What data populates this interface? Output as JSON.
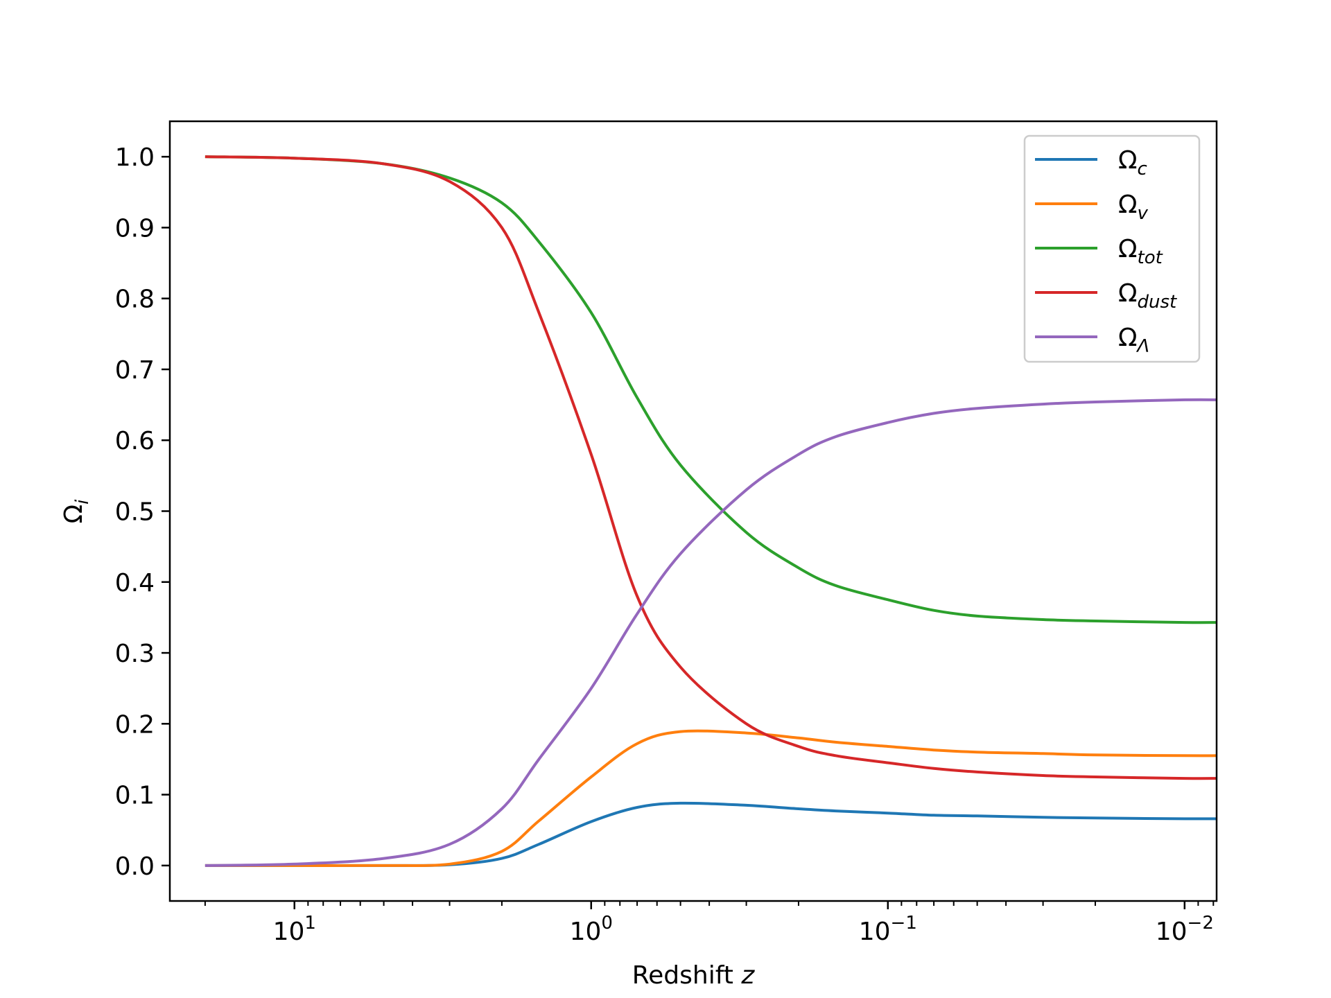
{
  "chart_data": {
    "type": "line",
    "xlabel": "Redshift",
    "xlabel_var": "z",
    "ylabel": "Ω",
    "ylabel_sub": "i",
    "x_scale": "log",
    "x_reversed": true,
    "xlim": [
      26.3,
      0.0078
    ],
    "ylim": [
      -0.05,
      1.05
    ],
    "x_ticks": [
      {
        "value": 10,
        "base": "10",
        "exp": "1"
      },
      {
        "value": 1,
        "base": "10",
        "exp": "0"
      },
      {
        "value": 0.1,
        "base": "10",
        "exp": "−1"
      },
      {
        "value": 0.01,
        "base": "10",
        "exp": "−2"
      }
    ],
    "y_ticks": [
      0.0,
      0.1,
      0.2,
      0.3,
      0.4,
      0.5,
      0.6,
      0.7,
      0.8,
      0.9,
      1.0
    ],
    "y_tick_labels": [
      "0.0",
      "0.1",
      "0.2",
      "0.3",
      "0.4",
      "0.5",
      "0.6",
      "0.7",
      "0.8",
      "0.9",
      "1.0"
    ],
    "grid": false,
    "legend_position": "top-right",
    "x": [
      20,
      10,
      5,
      3,
      2,
      1.5,
      1,
      0.7,
      0.5,
      0.3,
      0.2,
      0.15,
      0.1,
      0.07,
      0.05,
      0.03,
      0.02,
      0.01,
      0.0078
    ],
    "series": [
      {
        "name": "Ω",
        "sub": "c",
        "color": "#1f77b4",
        "values": [
          0.0,
          0.0,
          0.0,
          0.001,
          0.01,
          0.03,
          0.062,
          0.082,
          0.088,
          0.085,
          0.08,
          0.077,
          0.074,
          0.071,
          0.07,
          0.068,
          0.067,
          0.066,
          0.066
        ]
      },
      {
        "name": "Ω",
        "sub": "v",
        "color": "#ff7f0e",
        "values": [
          0.0,
          0.0,
          0.0,
          0.002,
          0.02,
          0.063,
          0.125,
          0.172,
          0.189,
          0.187,
          0.18,
          0.174,
          0.168,
          0.163,
          0.16,
          0.158,
          0.156,
          0.155,
          0.155
        ]
      },
      {
        "name": "Ω",
        "sub": "tot",
        "color": "#2ca02c",
        "values": [
          1.0,
          0.998,
          0.99,
          0.97,
          0.935,
          0.88,
          0.78,
          0.66,
          0.565,
          0.47,
          0.42,
          0.395,
          0.375,
          0.36,
          0.352,
          0.347,
          0.345,
          0.343,
          0.343
        ]
      },
      {
        "name": "Ω",
        "sub": "dust",
        "color": "#d62728",
        "values": [
          1.0,
          0.998,
          0.99,
          0.965,
          0.9,
          0.78,
          0.58,
          0.38,
          0.28,
          0.2,
          0.168,
          0.155,
          0.145,
          0.137,
          0.132,
          0.127,
          0.125,
          0.123,
          0.123
        ]
      },
      {
        "name": "Ω",
        "sub": "Λ",
        "color": "#9467bd",
        "values": [
          0.0,
          0.002,
          0.01,
          0.03,
          0.08,
          0.15,
          0.25,
          0.355,
          0.44,
          0.53,
          0.58,
          0.605,
          0.625,
          0.638,
          0.645,
          0.651,
          0.654,
          0.657,
          0.657
        ]
      }
    ]
  }
}
